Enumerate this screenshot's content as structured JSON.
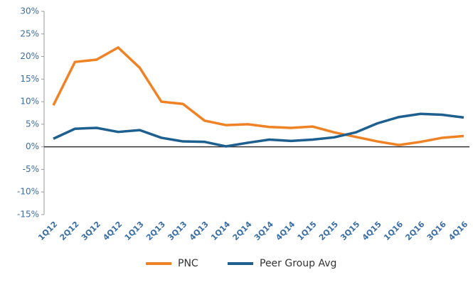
{
  "chart_data": {
    "type": "line",
    "categories": [
      "1Q12",
      "2Q12",
      "3Q12",
      "4Q12",
      "1Q13",
      "2Q13",
      "3Q13",
      "4Q13",
      "1Q14",
      "2Q14",
      "3Q14",
      "4Q14",
      "1Q15",
      "2Q15",
      "3Q15",
      "4Q15",
      "1Q16",
      "2Q16",
      "3Q16",
      "4Q16"
    ],
    "series": [
      {
        "name": "PNC",
        "color": "#f08226",
        "values": [
          9.2,
          18.8,
          19.3,
          22.0,
          17.5,
          10.0,
          9.5,
          5.8,
          4.8,
          5.0,
          4.4,
          4.2,
          4.5,
          3.2,
          2.2,
          1.2,
          0.4,
          1.1,
          2.0,
          2.4
        ]
      },
      {
        "name": "Peer Group Avg",
        "color": "#1d5f8e",
        "values": [
          1.8,
          4.0,
          4.2,
          3.3,
          3.7,
          2.0,
          1.2,
          1.1,
          0.1,
          0.9,
          1.6,
          1.3,
          1.6,
          2.1,
          3.2,
          5.2,
          6.6,
          7.3,
          7.1,
          6.5
        ]
      }
    ],
    "ylim": [
      -15,
      30
    ],
    "yticks": [
      {
        "value": -15,
        "label": "-15%"
      },
      {
        "value": -10,
        "label": "-10%"
      },
      {
        "value": -5,
        "label": "-5%"
      },
      {
        "value": 0,
        "label": "0%"
      },
      {
        "value": 5,
        "label": "5%"
      },
      {
        "value": 10,
        "label": "10%"
      },
      {
        "value": 15,
        "label": "15%"
      },
      {
        "value": 20,
        "label": "20%"
      },
      {
        "value": 25,
        "label": "25%"
      },
      {
        "value": 30,
        "label": "30%"
      }
    ],
    "grid": false,
    "legend": "bottom"
  }
}
